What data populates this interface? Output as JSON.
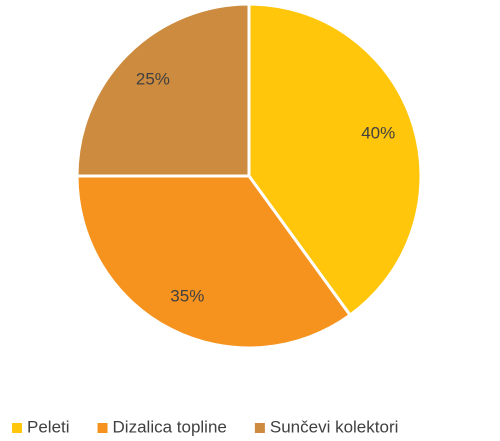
{
  "chart_data": {
    "type": "pie",
    "categories": [
      "Peleti",
      "Dizalica topline",
      "Sunčevi kolektori"
    ],
    "values": [
      40,
      35,
      25
    ],
    "value_labels": [
      "40%",
      "35%",
      "25%"
    ],
    "colors": [
      "#FFC60B",
      "#F6931F",
      "#CC8B3E"
    ],
    "legend": "bottom"
  }
}
